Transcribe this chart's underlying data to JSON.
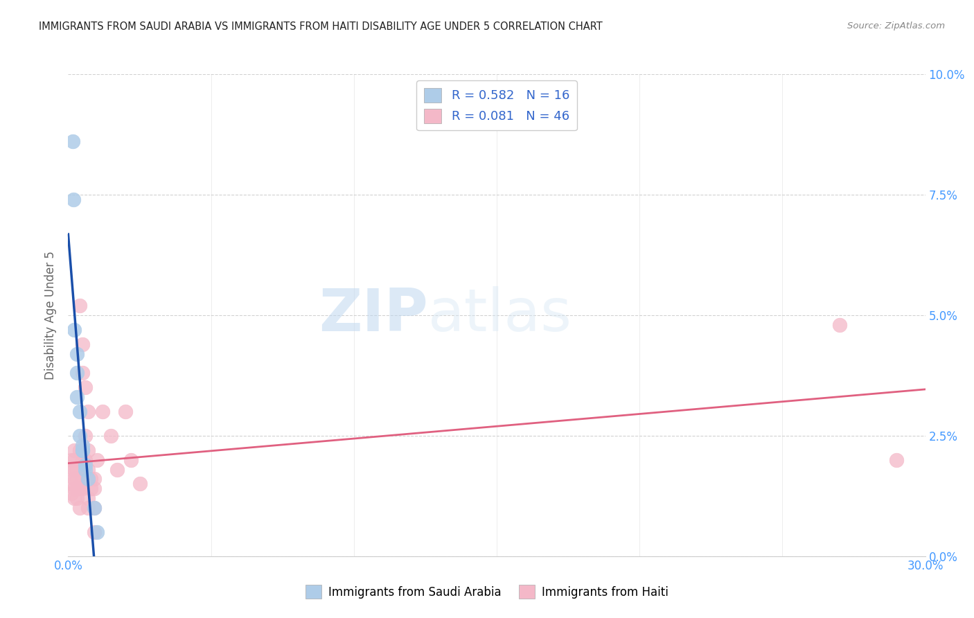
{
  "title": "IMMIGRANTS FROM SAUDI ARABIA VS IMMIGRANTS FROM HAITI DISABILITY AGE UNDER 5 CORRELATION CHART",
  "source": "Source: ZipAtlas.com",
  "ylabel": "Disability Age Under 5",
  "xlim": [
    0.0,
    0.3
  ],
  "ylim": [
    0.0,
    0.1
  ],
  "watermark_zip": "ZIP",
  "watermark_atlas": "atlas",
  "saudi_color": "#aecce8",
  "saudi_edge_color": "#aecce8",
  "saudi_line_color": "#1a4faa",
  "haiti_color": "#f4b8c8",
  "haiti_edge_color": "#f4b8c8",
  "haiti_line_color": "#e06080",
  "R_saudi": 0.582,
  "N_saudi": 16,
  "R_haiti": 0.081,
  "N_haiti": 46,
  "legend_label_saudi": "Immigrants from Saudi Arabia",
  "legend_label_haiti": "Immigrants from Haiti",
  "saudi_points": [
    [
      0.0015,
      0.086
    ],
    [
      0.0018,
      0.074
    ],
    [
      0.002,
      0.047
    ],
    [
      0.003,
      0.042
    ],
    [
      0.003,
      0.038
    ],
    [
      0.003,
      0.033
    ],
    [
      0.004,
      0.03
    ],
    [
      0.004,
      0.025
    ],
    [
      0.005,
      0.023
    ],
    [
      0.005,
      0.022
    ],
    [
      0.005,
      0.022
    ],
    [
      0.006,
      0.019
    ],
    [
      0.006,
      0.018
    ],
    [
      0.007,
      0.016
    ],
    [
      0.009,
      0.01
    ],
    [
      0.01,
      0.005
    ]
  ],
  "haiti_points": [
    [
      0.001,
      0.02
    ],
    [
      0.001,
      0.018
    ],
    [
      0.001,
      0.015
    ],
    [
      0.001,
      0.013
    ],
    [
      0.002,
      0.022
    ],
    [
      0.002,
      0.02
    ],
    [
      0.002,
      0.018
    ],
    [
      0.002,
      0.016
    ],
    [
      0.002,
      0.014
    ],
    [
      0.002,
      0.012
    ],
    [
      0.003,
      0.018
    ],
    [
      0.003,
      0.016
    ],
    [
      0.003,
      0.014
    ],
    [
      0.003,
      0.012
    ],
    [
      0.004,
      0.052
    ],
    [
      0.004,
      0.022
    ],
    [
      0.004,
      0.014
    ],
    [
      0.004,
      0.01
    ],
    [
      0.005,
      0.044
    ],
    [
      0.005,
      0.038
    ],
    [
      0.005,
      0.02
    ],
    [
      0.005,
      0.016
    ],
    [
      0.005,
      0.014
    ],
    [
      0.006,
      0.035
    ],
    [
      0.006,
      0.025
    ],
    [
      0.006,
      0.02
    ],
    [
      0.007,
      0.03
    ],
    [
      0.007,
      0.022
    ],
    [
      0.007,
      0.018
    ],
    [
      0.007,
      0.012
    ],
    [
      0.007,
      0.01
    ],
    [
      0.008,
      0.016
    ],
    [
      0.008,
      0.014
    ],
    [
      0.009,
      0.016
    ],
    [
      0.009,
      0.014
    ],
    [
      0.009,
      0.01
    ],
    [
      0.009,
      0.005
    ],
    [
      0.01,
      0.02
    ],
    [
      0.012,
      0.03
    ],
    [
      0.015,
      0.025
    ],
    [
      0.017,
      0.018
    ],
    [
      0.02,
      0.03
    ],
    [
      0.022,
      0.02
    ],
    [
      0.025,
      0.015
    ],
    [
      0.27,
      0.048
    ],
    [
      0.29,
      0.02
    ]
  ],
  "background_color": "#ffffff",
  "grid_color": "#cccccc",
  "tick_color": "#4499ff",
  "ylabel_color": "#666666",
  "title_color": "#222222"
}
